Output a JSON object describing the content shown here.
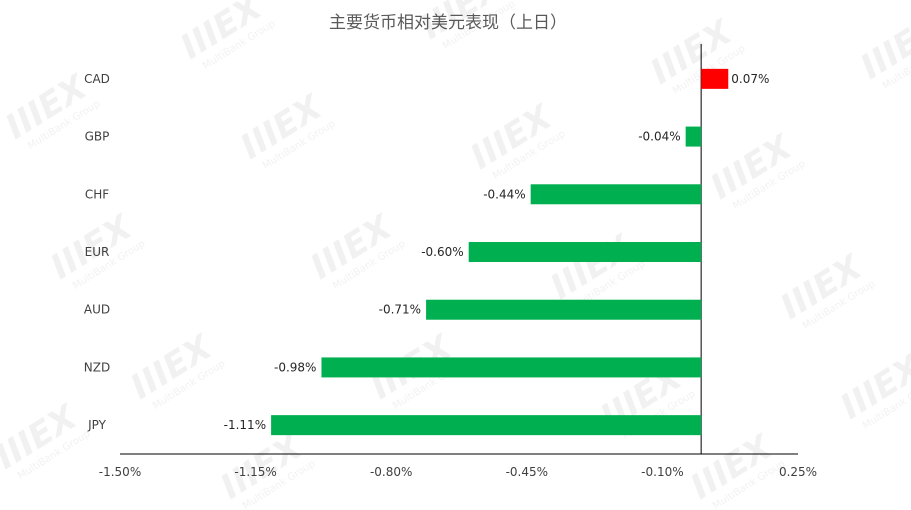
{
  "chart_data": {
    "type": "bar",
    "orientation": "horizontal",
    "title": "主要货币相对美元表现（上日）",
    "categories": [
      "CAD",
      "GBP",
      "CHF",
      "EUR",
      "AUD",
      "NZD",
      "JPY"
    ],
    "values": [
      0.07,
      -0.04,
      -0.44,
      -0.6,
      -0.71,
      -0.98,
      -1.11
    ],
    "value_labels": [
      "0.07%",
      "-0.04%",
      "-0.44%",
      "-0.60%",
      "-0.71%",
      "-0.98%",
      "-1.11%"
    ],
    "xlim": [
      -1.5,
      0.25
    ],
    "xticks": [
      -1.5,
      -1.15,
      -0.8,
      -0.45,
      -0.1,
      0.25
    ],
    "xtick_labels": [
      "-1.50%",
      "-1.15%",
      "-0.80%",
      "-0.45%",
      "-0.10%",
      "0.25%"
    ],
    "positive_color": "#ff0000",
    "negative_color": "#00b050",
    "grid": false,
    "legend": "none"
  },
  "watermark": {
    "logo": "IIIEX",
    "tagline": "MultiBank Group"
  }
}
